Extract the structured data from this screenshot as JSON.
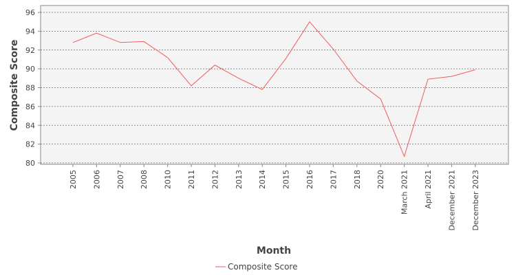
{
  "chart_data": {
    "type": "line",
    "title": "",
    "xlabel": "Month",
    "ylabel": "Composite Score",
    "categories": [
      "2005",
      "2006",
      "2007",
      "2008",
      "2010",
      "2011",
      "2012",
      "2013",
      "2014",
      "2015",
      "2016",
      "2017",
      "2018",
      "2020",
      "March 2021",
      "April 2021",
      "December 2021",
      "December 2023"
    ],
    "series": [
      {
        "name": "Composite Score",
        "values": [
          92.8,
          93.8,
          92.8,
          92.9,
          91.2,
          88.2,
          90.4,
          89.0,
          87.8,
          91.1,
          95.0,
          92.1,
          88.7,
          86.8,
          80.7,
          88.9,
          89.2,
          89.9
        ]
      }
    ],
    "ylim": [
      80,
      96
    ],
    "yticks": [
      80,
      82,
      84,
      86,
      88,
      90,
      92,
      94,
      96
    ],
    "grid": true,
    "legend_position": "bottom-center",
    "colors": {
      "line": "#f05a5a",
      "plot_background": "#f4f4f4",
      "grid": "#666666",
      "text": "#444444"
    }
  }
}
